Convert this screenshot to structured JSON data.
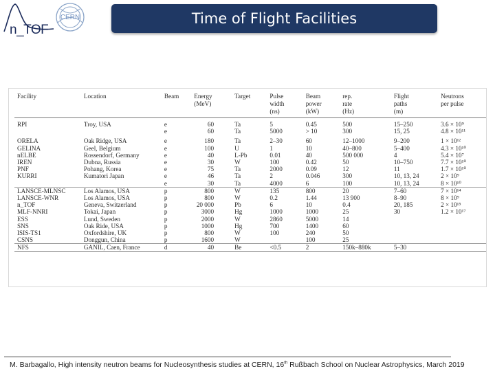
{
  "slide": {
    "title": "Time of Flight Facilities",
    "logo_ntof": "n_TOF",
    "logo_cern": "CERN"
  },
  "table": {
    "headers": [
      [
        "Facility"
      ],
      [
        "Location"
      ],
      [
        "Beam"
      ],
      [
        "Energy",
        "(MeV)"
      ],
      [
        "Target"
      ],
      [
        "Pulse",
        "width",
        "(ns)"
      ],
      [
        "Beam",
        "power",
        "(kW)"
      ],
      [
        "rep.",
        "rate",
        "(Hz)"
      ],
      [
        "Flight",
        "paths",
        "(m)"
      ],
      [
        "Neutrons",
        "per pulse"
      ]
    ],
    "rows": [
      [
        "RPI",
        "Troy, USA",
        "e",
        "60",
        "Ta",
        "5",
        "0.45",
        "500",
        "15–250",
        "3.6 × 10⁹"
      ],
      [
        "",
        "",
        "e",
        "60",
        "Ta",
        "5000",
        "> 10",
        "300",
        "15, 25",
        "4.8 × 10¹¹"
      ],
      [
        "ORELA",
        "Oak Ridge, USA",
        "e",
        "180",
        "Ta",
        "2–30",
        "60",
        "12–1000",
        "9–200",
        "1 × 10¹²"
      ],
      [
        "GELINA",
        "Geel, Belgium",
        "e",
        "100",
        "U",
        "1",
        "10",
        "40–800",
        "5–400",
        "4.3 × 10¹⁰"
      ],
      [
        "nELBE",
        "Rossendorf, Germany",
        "e",
        "40",
        "L-Pb",
        "0.01",
        "40",
        "500 000",
        "4",
        "5.4 × 10⁷"
      ],
      [
        "IREN",
        "Dubna, Russia",
        "e",
        "30",
        "W",
        "100",
        "0.42",
        "50",
        "10–750",
        "7.7 × 10¹⁰"
      ],
      [
        "PNF",
        "Pohang, Korea",
        "e",
        "75",
        "Ta",
        "2000",
        "0.09",
        "12",
        "11",
        "1.7 × 10¹⁰"
      ],
      [
        "KURRI",
        "Kumatori Japan",
        "e",
        "46",
        "Ta",
        "2",
        "0.046",
        "300",
        "10, 13, 24",
        "2 × 10⁹"
      ],
      [
        "",
        "",
        "e",
        "30",
        "Ta",
        "4000",
        "6",
        "100",
        "10, 13, 24",
        "8 × 10¹⁰"
      ],
      [
        "LANSCE-MLNSC",
        "Los Alamos, USA",
        "p",
        "800",
        "W",
        "135",
        "800",
        "20",
        "7–60",
        "7 × 10¹⁴"
      ],
      [
        "LANSCE-WNR",
        "Los Alamos, USA",
        "p",
        "800",
        "W",
        "0.2",
        "1.44",
        "13 900",
        "8–90",
        "8 × 10⁹"
      ],
      [
        "n_TOF",
        "Geneva, Switzerland",
        "p",
        "20 000",
        "Pb",
        "6",
        "10",
        "0.4",
        "20, 185",
        "2 × 10¹⁵"
      ],
      [
        "MLF-NNRI",
        "Tokai, Japan",
        "p",
        "3000",
        "Hg",
        "1000",
        "1000",
        "25",
        "30",
        "1.2 × 10¹⁷"
      ],
      [
        "ESS",
        "Lund, Sweden",
        "p",
        "2000",
        "W",
        "2860",
        "5000",
        "14",
        "",
        ""
      ],
      [
        "SNS",
        "Oak Ride, USA",
        "p",
        "1000",
        "Hg",
        "700",
        "1400",
        "60",
        "",
        ""
      ],
      [
        "ISIS-TS1",
        "Oxfordshire, UK",
        "p",
        "800",
        "W",
        "100",
        "240",
        "50",
        "",
        ""
      ],
      [
        "CSNS",
        "Donggun, China",
        "p",
        "1600",
        "W",
        "",
        "100",
        "25",
        "",
        ""
      ],
      [
        "NFS",
        "GANIL, Caen, France",
        "d",
        "40",
        "Be",
        "<0.5",
        "2",
        "150k–880k",
        "5–30",
        ""
      ]
    ]
  },
  "footer": {
    "prefix": "M. Barbagallo, High intensity neutron beams for Nucleosynthesis studies at CERN, 16",
    "sup": "th",
    "suffix": " Rußbach School on Nuclear Astrophysics, March 2019"
  }
}
